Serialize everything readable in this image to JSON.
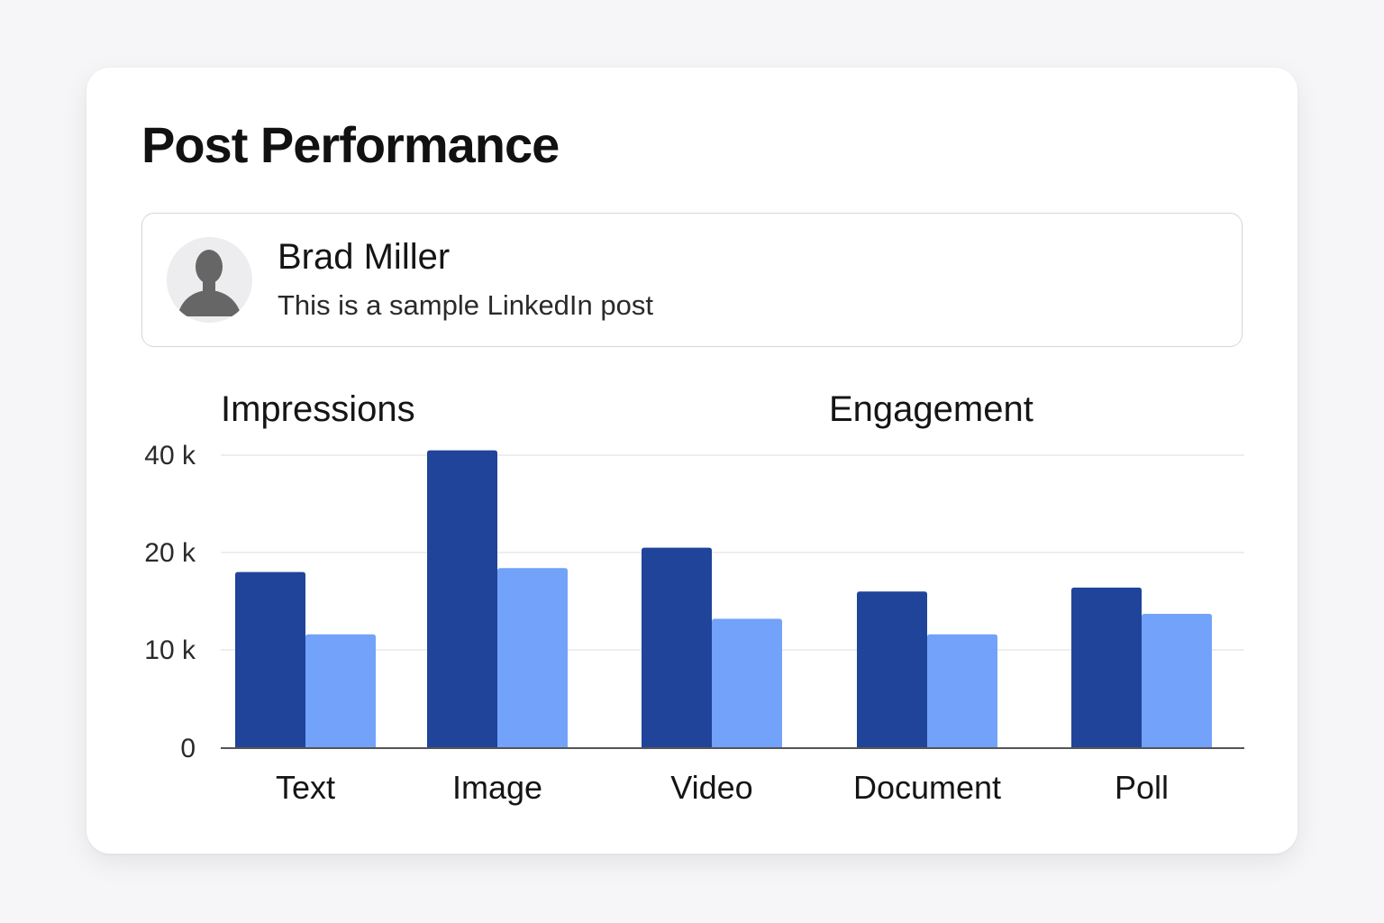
{
  "card": {
    "title": "Post Performance"
  },
  "post": {
    "author": "Brad Miller",
    "text": "This is a sample LinkedIn post",
    "avatar_icon": "person-silhouette-icon"
  },
  "chart_data": {
    "type": "bar",
    "title": "",
    "categories": [
      "Text",
      "Image",
      "Video",
      "Document",
      "Poll"
    ],
    "series": [
      {
        "name": "Impressions",
        "color": "#1f4499",
        "values": [
          18000,
          41000,
          21000,
          16000,
          16400
        ]
      },
      {
        "name": "Engagement",
        "color": "#72a2fa",
        "values": [
          11600,
          18400,
          13200,
          11600,
          13700
        ]
      }
    ],
    "yticks": [
      {
        "value": 0,
        "label": "0"
      },
      {
        "value": 10000,
        "label": "10 k"
      },
      {
        "value": 20000,
        "label": "20 k"
      },
      {
        "value": 40000,
        "label": "40 k"
      }
    ],
    "ylim": [
      0,
      40000
    ],
    "xlabel": "",
    "ylabel": "",
    "grid": true,
    "legend": "top"
  }
}
